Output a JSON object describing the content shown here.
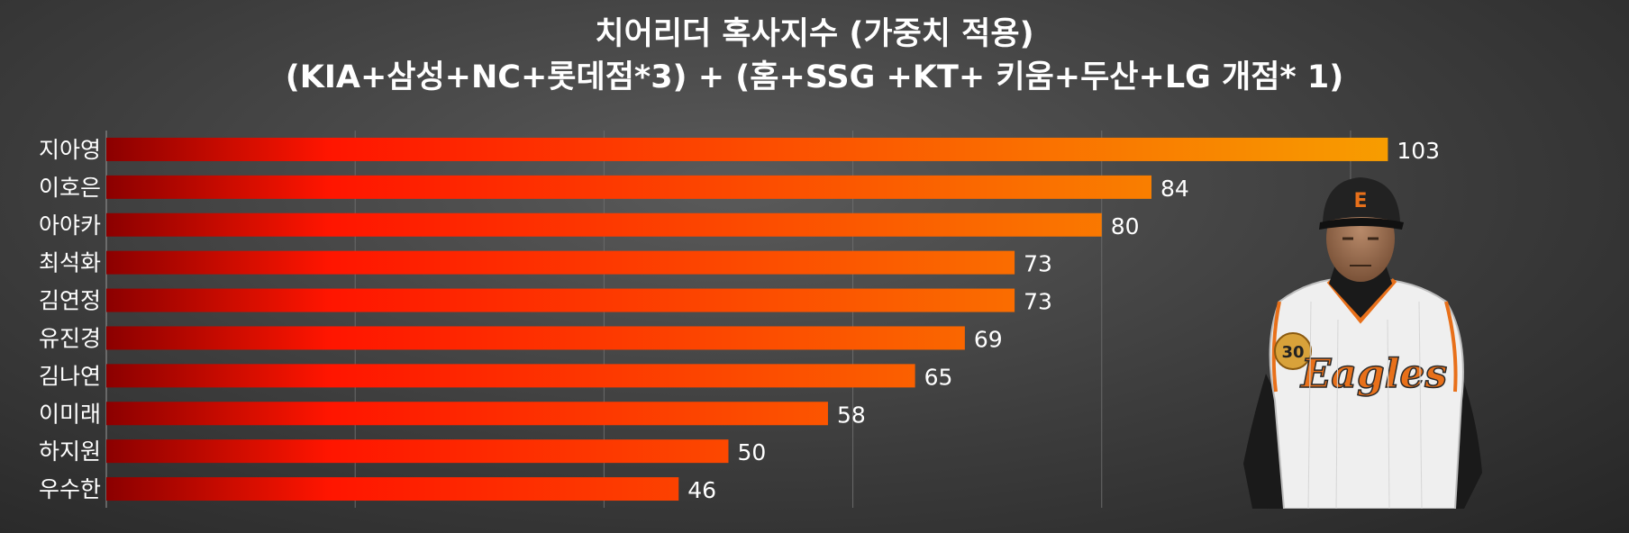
{
  "chart_data": {
    "type": "bar",
    "orientation": "horizontal",
    "title": "치어리더 혹사지수 (가중치 적용)",
    "subtitle": "(KIA+삼성+NC+롯데점*3) + (홈+SSG +KT+ 키움+두산+LG 개점* 1)",
    "categories": [
      "지아영",
      "이호은",
      "아야카",
      "최석화",
      "김연정",
      "유진경",
      "김나연",
      "이미래",
      "하지원",
      "우수한"
    ],
    "values": [
      103,
      84,
      80,
      73,
      73,
      69,
      65,
      58,
      50,
      46
    ],
    "xlim": [
      0,
      105
    ],
    "grid": "vertical",
    "legend": "none",
    "colors": {
      "bar_start": "#8b0000",
      "bar_mid": "#ff1500",
      "bar_end": "#f7a000",
      "grid": "#6a6a6a"
    }
  },
  "photo": {
    "cap_logo": "E",
    "jersey_text": "Eagles",
    "patch_number": "30"
  }
}
